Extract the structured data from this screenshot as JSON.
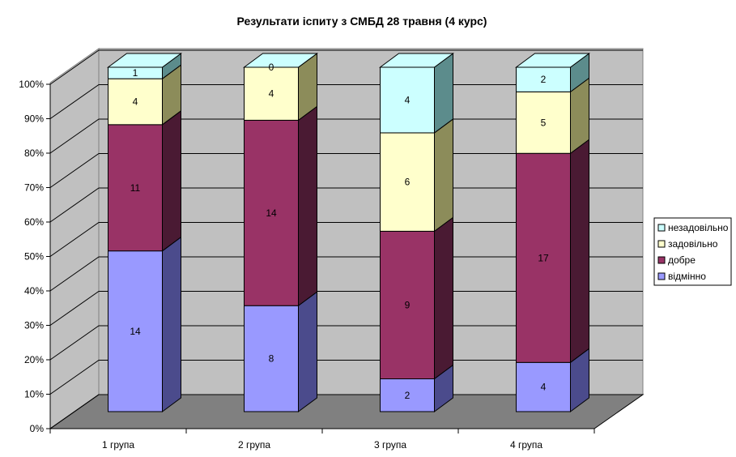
{
  "chart_data": {
    "type": "bar",
    "stacked": "percent",
    "style": "3d-column",
    "title": "Результати іспиту з СМБД 28 травня (4 курс)",
    "xlabel": "",
    "ylabel": "",
    "ylim": [
      0,
      100
    ],
    "yticks": [
      "0%",
      "10%",
      "20%",
      "30%",
      "40%",
      "50%",
      "60%",
      "70%",
      "80%",
      "90%",
      "100%"
    ],
    "grid": true,
    "legend_position": "right",
    "categories": [
      "1 група",
      "2 група",
      "3 група",
      "4 група"
    ],
    "series": [
      {
        "name": "відмінно",
        "color": "#9999FF",
        "side_color": "#4B4B8C",
        "values": [
          14,
          8,
          2,
          4
        ]
      },
      {
        "name": "добре",
        "color": "#993366",
        "side_color": "#4A1A33",
        "values": [
          11,
          14,
          9,
          17
        ]
      },
      {
        "name": "задовільно",
        "color": "#FFFFCC",
        "side_color": "#8C8C5A",
        "values": [
          4,
          4,
          6,
          5
        ]
      },
      {
        "name": "незадовільно",
        "color": "#CCFFFF",
        "side_color": "#5C8C8C",
        "values": [
          1,
          0,
          4,
          2
        ]
      }
    ],
    "colors": {
      "back_wall": "#C0C0C0",
      "floor": "#808080",
      "gridline": "#000000"
    }
  }
}
